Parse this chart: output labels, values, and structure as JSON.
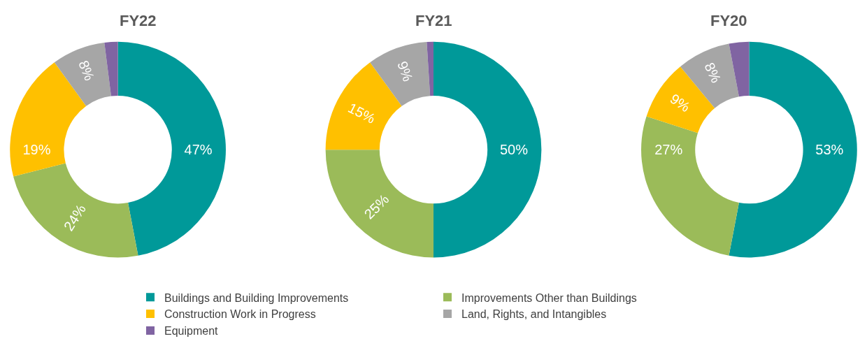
{
  "chart_data": {
    "type": "donut",
    "categories": [
      "Buildings and Building Improvements",
      "Improvements Other than Buildings",
      "Construction Work in Progress",
      "Land, Rights, and Intangibles",
      "Equipment"
    ],
    "colors": [
      "#009999",
      "#9bbb59",
      "#ffc000",
      "#a6a6a6",
      "#8064a2"
    ],
    "legend": "bottom",
    "series": [
      {
        "name": "FY22",
        "values": [
          47,
          24,
          19,
          8,
          2
        ],
        "value_labels": [
          "47%",
          "24%",
          "19%",
          "8%",
          null
        ]
      },
      {
        "name": "FY21",
        "values": [
          50,
          25,
          15,
          9,
          1
        ],
        "value_labels": [
          "50%",
          "25%",
          "15%",
          "9%",
          null
        ]
      },
      {
        "name": "FY20",
        "values": [
          53,
          27,
          9,
          8,
          3
        ],
        "value_labels": [
          "53%",
          "27%",
          "9%",
          "8%",
          null
        ]
      }
    ]
  }
}
